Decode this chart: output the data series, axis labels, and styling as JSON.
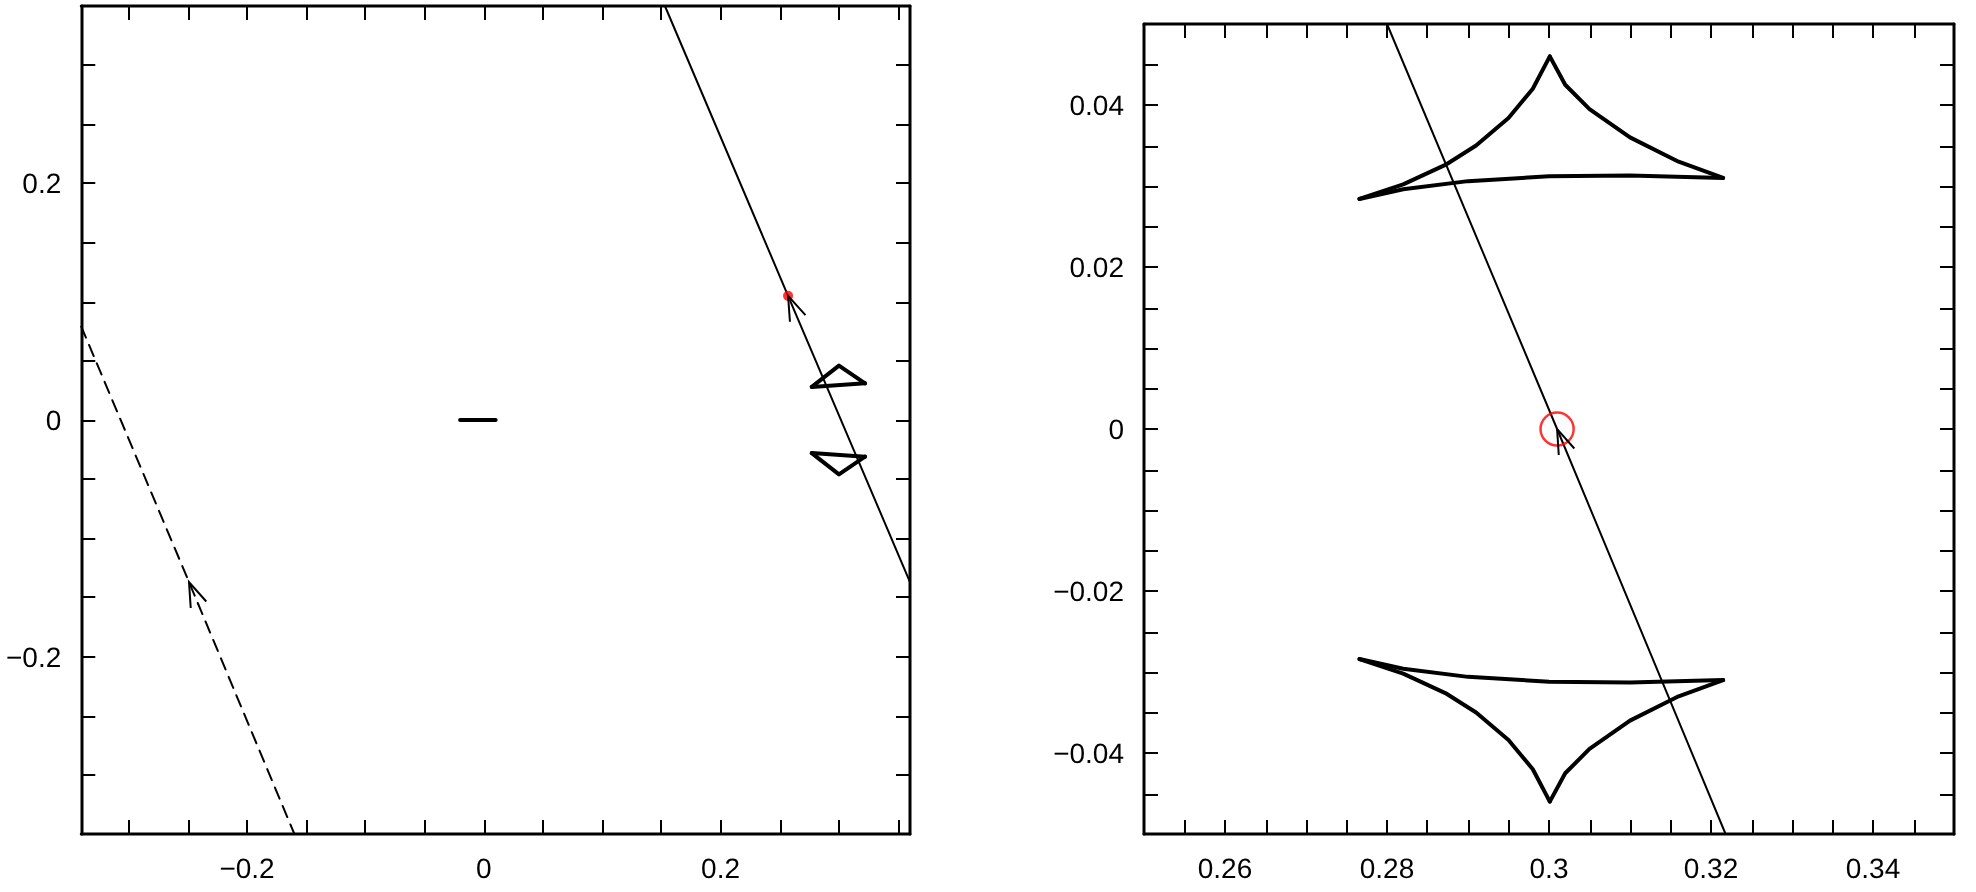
{
  "chart_data": [
    {
      "type": "line",
      "xlim": [
        -0.34,
        0.36
      ],
      "ylim": [
        -0.35,
        0.35
      ],
      "xticks": [
        {
          "value": -0.3,
          "label": null
        },
        {
          "value": -0.25,
          "label": null
        },
        -0.2,
        {
          "value": -0.15,
          "label": null
        },
        {
          "value": -0.1,
          "label": null
        },
        {
          "value": -0.05,
          "label": null
        },
        0,
        {
          "value": 0.05,
          "label": null
        },
        {
          "value": 0.1,
          "label": null
        },
        {
          "value": 0.15,
          "label": null
        },
        0.2,
        {
          "value": 0.25,
          "label": null
        },
        {
          "value": 0.3,
          "label": null
        },
        {
          "value": 0.35,
          "label": null
        }
      ],
      "yticks": [
        {
          "value": -0.3,
          "label": null
        },
        {
          "value": -0.25,
          "label": null
        },
        -0.2,
        {
          "value": -0.15,
          "label": null
        },
        {
          "value": -0.1,
          "label": null
        },
        {
          "value": -0.05,
          "label": null
        },
        0,
        {
          "value": 0.05,
          "label": null
        },
        {
          "value": 0.1,
          "label": null
        },
        {
          "value": 0.15,
          "label": null
        },
        0.2,
        {
          "value": 0.25,
          "label": null
        },
        {
          "value": 0.3,
          "label": null
        }
      ],
      "grid": false,
      "series": [
        {
          "color": "#000000",
          "line_style": "solid",
          "marker": "none",
          "x": [
            0.153,
            0.257,
            0.36
          ],
          "values": [
            0.35,
            0.105,
            -0.137
          ]
        },
        {
          "color": "#000000",
          "line_style": "dashed",
          "marker": "none",
          "x": [
            -0.34,
            -0.249,
            -0.16
          ],
          "values": [
            0.079,
            -0.137,
            -0.35
          ]
        },
        {
          "color": "#000000",
          "line_style": "solid",
          "marker": "none",
          "x": [
            -0.02,
            0.0,
            0.01
          ],
          "values": [
            0.0,
            0.0,
            0.0
          ]
        },
        {
          "color": "#000000",
          "line_style": "solid",
          "marker": "none",
          "x": [
            0.277,
            0.3,
            0.322
          ],
          "values": [
            0.028,
            0.046,
            0.031
          ]
        },
        {
          "color": "#000000",
          "line_style": "solid",
          "marker": "none",
          "x": [
            0.277,
            0.322
          ],
          "values": [
            0.028,
            0.031
          ]
        },
        {
          "color": "#000000",
          "line_style": "solid",
          "marker": "none",
          "x": [
            0.277,
            0.3,
            0.322
          ],
          "values": [
            -0.028,
            -0.046,
            -0.031
          ]
        },
        {
          "color": "#000000",
          "line_style": "solid",
          "marker": "none",
          "x": [
            0.277,
            0.322
          ],
          "values": [
            -0.028,
            -0.031
          ]
        },
        {
          "type": "scatter",
          "color": "#ff0000",
          "marker": "circle",
          "x": [
            0.257
          ],
          "values": [
            0.105
          ]
        }
      ]
    },
    {
      "type": "line",
      "xlim": [
        0.25,
        0.35
      ],
      "ylim": [
        -0.05,
        0.05
      ],
      "xticks": [
        {
          "value": 0.255,
          "label": null
        },
        0.26,
        {
          "value": 0.265,
          "label": null
        },
        {
          "value": 0.27,
          "label": null
        },
        {
          "value": 0.275,
          "label": null
        },
        0.28,
        {
          "value": 0.285,
          "label": null
        },
        {
          "value": 0.29,
          "label": null
        },
        {
          "value": 0.295,
          "label": null
        },
        0.3,
        {
          "value": 0.305,
          "label": null
        },
        {
          "value": 0.31,
          "label": null
        },
        {
          "value": 0.315,
          "label": null
        },
        0.32,
        {
          "value": 0.325,
          "label": null
        },
        {
          "value": 0.33,
          "label": null
        },
        {
          "value": 0.335,
          "label": null
        },
        0.34,
        {
          "value": 0.345,
          "label": null
        }
      ],
      "yticks": [
        {
          "value": -0.045,
          "label": null
        },
        -0.04,
        {
          "value": -0.035,
          "label": null
        },
        {
          "value": -0.03,
          "label": null
        },
        {
          "value": -0.025,
          "label": null
        },
        -0.02,
        {
          "value": -0.015,
          "label": null
        },
        {
          "value": -0.01,
          "label": null
        },
        {
          "value": -0.005,
          "label": null
        },
        0,
        {
          "value": 0.005,
          "label": null
        },
        {
          "value": 0.01,
          "label": null
        },
        {
          "value": 0.015,
          "label": null
        },
        0.02,
        {
          "value": 0.025,
          "label": null
        },
        {
          "value": 0.03,
          "label": null
        },
        {
          "value": 0.035,
          "label": null
        },
        0.04,
        {
          "value": 0.045,
          "label": null
        }
      ],
      "grid": false,
      "series": [
        {
          "color": "#000000",
          "line_style": "solid",
          "marker": "none",
          "x": [
            0.28,
            0.301,
            0.3218
          ],
          "values": [
            0.05,
            0.0,
            -0.05
          ]
        },
        {
          "color": "#000000",
          "line_style": "solid",
          "marker": "none",
          "x": [
            0.2766,
            0.282,
            0.2872,
            0.291,
            0.295,
            0.298,
            0.3001
          ],
          "values": [
            0.0284,
            0.0302,
            0.0326,
            0.035,
            0.0384,
            0.042,
            0.046
          ]
        },
        {
          "color": "#000000",
          "line_style": "solid",
          "marker": "none",
          "x": [
            0.3001,
            0.302,
            0.305,
            0.31,
            0.316,
            0.3215
          ],
          "values": [
            0.046,
            0.0425,
            0.0395,
            0.036,
            0.033,
            0.031
          ]
        },
        {
          "color": "#000000",
          "line_style": "solid",
          "marker": "none",
          "x": [
            0.2766,
            0.282,
            0.29,
            0.3,
            0.31,
            0.3215
          ],
          "values": [
            0.0284,
            0.0296,
            0.0306,
            0.0312,
            0.0313,
            0.031
          ]
        },
        {
          "color": "#000000",
          "line_style": "solid",
          "marker": "none",
          "x": [
            0.2766,
            0.282,
            0.2872,
            0.291,
            0.295,
            0.298,
            0.3001
          ],
          "values": [
            -0.0284,
            -0.0302,
            -0.0326,
            -0.035,
            -0.0384,
            -0.042,
            -0.046
          ]
        },
        {
          "color": "#000000",
          "line_style": "solid",
          "marker": "none",
          "x": [
            0.3001,
            0.302,
            0.305,
            0.31,
            0.316,
            0.3215
          ],
          "values": [
            -0.046,
            -0.0425,
            -0.0395,
            -0.036,
            -0.033,
            -0.031
          ]
        },
        {
          "color": "#000000",
          "line_style": "solid",
          "marker": "none",
          "x": [
            0.2766,
            0.282,
            0.29,
            0.3,
            0.31,
            0.3215
          ],
          "values": [
            -0.0284,
            -0.0296,
            -0.0306,
            -0.0312,
            -0.0313,
            -0.031
          ]
        },
        {
          "type": "scatter",
          "color": "#ff0000",
          "marker": "circle",
          "x": [
            0.301
          ],
          "values": [
            0.0
          ]
        }
      ]
    }
  ]
}
